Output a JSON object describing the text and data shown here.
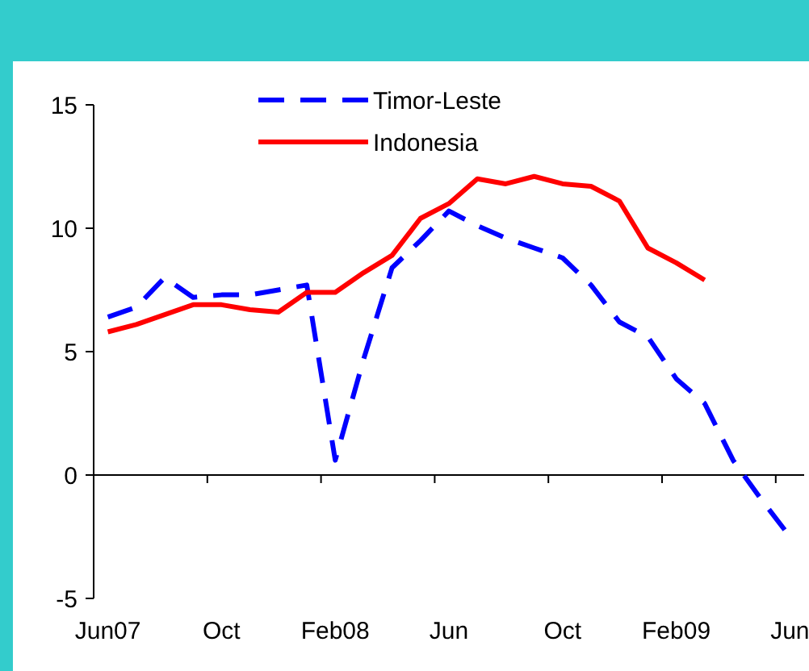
{
  "chart_data": {
    "type": "line",
    "categories": [
      "Jun07",
      null,
      null,
      null,
      "Oct",
      null,
      null,
      null,
      "Feb08",
      null,
      null,
      null,
      "Jun",
      null,
      null,
      null,
      "Oct",
      null,
      null,
      null,
      "Feb09",
      null,
      null,
      null,
      "Jun"
    ],
    "series": [
      {
        "name": "Timor-Leste",
        "color": "#0000ff",
        "line_style": "dashed",
        "values": [
          6.4,
          6.8,
          8.0,
          7.2,
          7.3,
          7.3,
          7.5,
          7.7,
          0.6,
          4.7,
          8.4,
          9.5,
          10.7,
          10.1,
          9.6,
          9.2,
          8.8,
          7.7,
          6.2,
          5.6,
          3.9,
          2.9,
          0.6,
          -1.0,
          -2.5
        ]
      },
      {
        "name": "Indonesia",
        "color": "#ff0000",
        "line_style": "solid",
        "values": [
          5.8,
          6.1,
          6.5,
          6.9,
          6.9,
          6.7,
          6.6,
          7.4,
          7.4,
          8.2,
          8.9,
          10.4,
          11.0,
          12.0,
          11.8,
          12.1,
          11.8,
          11.7,
          11.1,
          9.2,
          8.6,
          7.9,
          null,
          null,
          null
        ]
      }
    ],
    "ylim": [
      -5,
      15
    ],
    "yticks": [
      -5,
      0,
      5,
      10,
      15
    ],
    "legend": "top",
    "marker": "none"
  }
}
